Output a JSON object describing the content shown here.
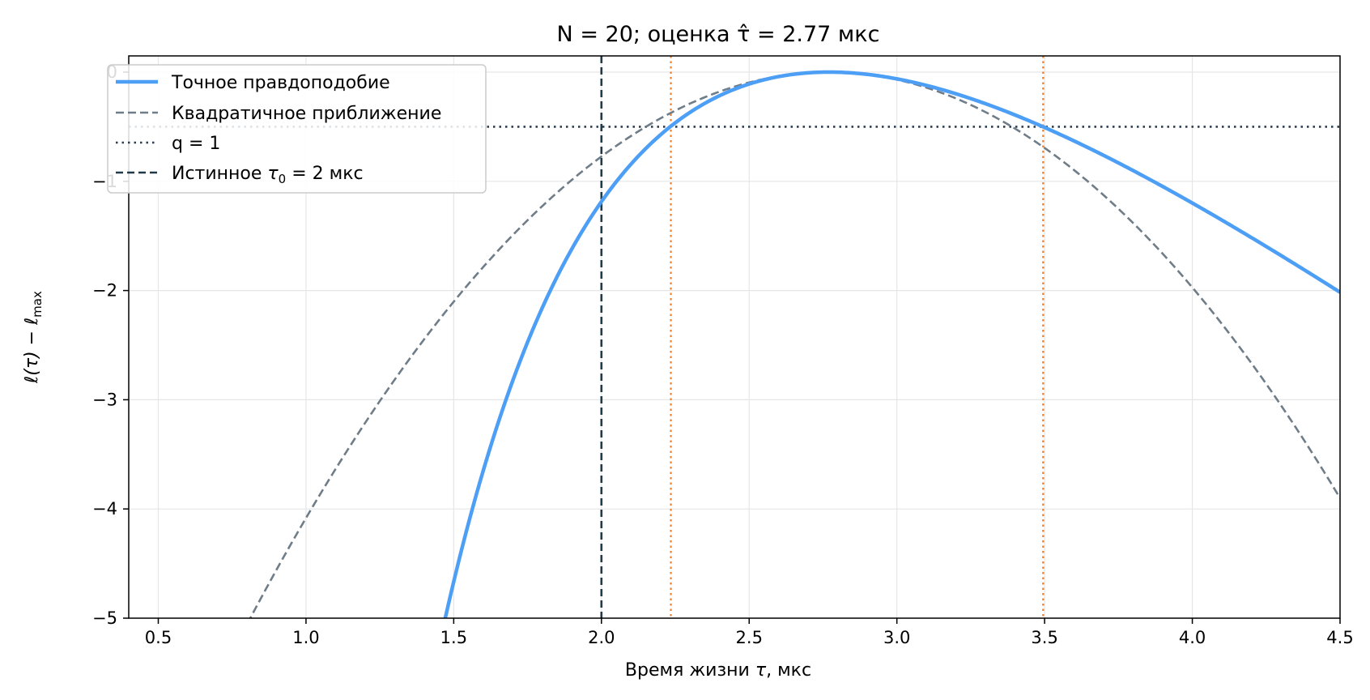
{
  "chart_data": {
    "type": "line",
    "title": "N = 20; оценка τ̂ = 2.77 мкс",
    "xlabel_main": "Время жизни ",
    "xlabel_symbol": "τ",
    "xlabel_unit": ", мкс",
    "ylabel_main": "ℓ(τ) − ℓ",
    "ylabel_sub": "max",
    "xlim": [
      0.4,
      4.5
    ],
    "ylim": [
      -5,
      0.15
    ],
    "xticks": [
      0.5,
      1.0,
      1.5,
      2.0,
      2.5,
      3.0,
      3.5,
      4.0,
      4.5
    ],
    "xtick_labels": [
      "0.5",
      "1.0",
      "1.5",
      "2.0",
      "2.5",
      "3.0",
      "3.5",
      "4.0",
      "4.5"
    ],
    "yticks": [
      0,
      -1,
      -2,
      -3,
      -4,
      -5
    ],
    "ytick_labels": [
      "0",
      "−1",
      "−2",
      "−3",
      "−4",
      "−5"
    ],
    "grid": true,
    "legend_position": "top-left",
    "n": 20,
    "tau_hat": 2.77,
    "tau_true": 2.0,
    "threshold": -0.5,
    "interval": [
      2.235,
      3.495
    ],
    "colors": {
      "exact": "#4d9ef5",
      "quadratic": "#6f7d89",
      "threshold": "#2c3e50",
      "true_tau": "#1f3a48",
      "interval": "#f07d28"
    },
    "series": [
      {
        "name": "Точное правдоподобие",
        "kind": "exact",
        "x_start": 1.45,
        "x_end": 4.5
      },
      {
        "name": "Квадратичное приближение",
        "kind": "quadratic",
        "x_start": 0.4,
        "x_end": 4.5
      }
    ],
    "legend": [
      {
        "label": "Точное правдоподобие",
        "style": "exact"
      },
      {
        "label": "Квадратичное приближение",
        "style": "quadratic"
      },
      {
        "label": "q = 1",
        "style": "threshold"
      },
      {
        "label_main": "Истинное ",
        "label_symbol": "τ",
        "label_sub": "0",
        "label_rest": " = 2 мкс",
        "style": "true_tau"
      }
    ]
  }
}
